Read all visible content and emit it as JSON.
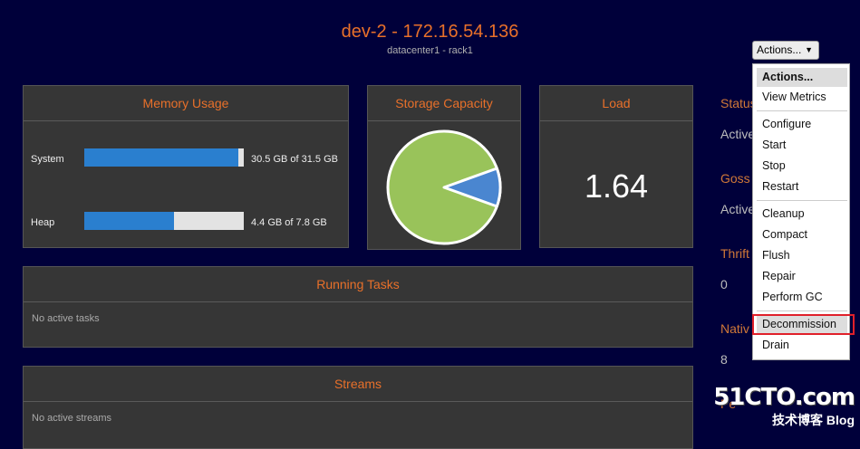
{
  "node": {
    "title": "dev-2 - 172.16.54.136",
    "subtitle": "datacenter1 - rack1"
  },
  "memory": {
    "title": "Memory Usage",
    "system": {
      "label": "System",
      "text": "30.5 GB of 31.5 GB",
      "fraction": 0.968
    },
    "heap": {
      "label": "Heap",
      "text": "4.4 GB of 7.8 GB",
      "fraction": 0.564
    }
  },
  "storage": {
    "title": "Storage Capacity",
    "used_fraction": 0.89,
    "used_color": "#99c35a",
    "free_color": "#4a86d0"
  },
  "load": {
    "title": "Load",
    "value": "1.64"
  },
  "running_tasks": {
    "title": "Running Tasks",
    "empty": "No active tasks"
  },
  "streams": {
    "title": "Streams",
    "empty": "No active streams"
  },
  "right_column": {
    "status": "Status",
    "status_val": "Active",
    "gossip": "Goss",
    "gossip_val": "Active",
    "thrift": "Thrift",
    "thrift_val": "0",
    "native": "Nativ",
    "native_val": "8",
    "pe": "Pe"
  },
  "actions": {
    "button_label": "Actions...",
    "menu": {
      "header": "Actions...",
      "view_metrics": "View Metrics",
      "configure": "Configure",
      "start": "Start",
      "stop": "Stop",
      "restart": "Restart",
      "cleanup": "Cleanup",
      "compact": "Compact",
      "flush": "Flush",
      "repair": "Repair",
      "perform_gc": "Perform GC",
      "decommission": "Decommission",
      "drain": "Drain"
    }
  },
  "watermark": {
    "line1": "51CTO.com",
    "line2": "技术博客 Blog"
  }
}
